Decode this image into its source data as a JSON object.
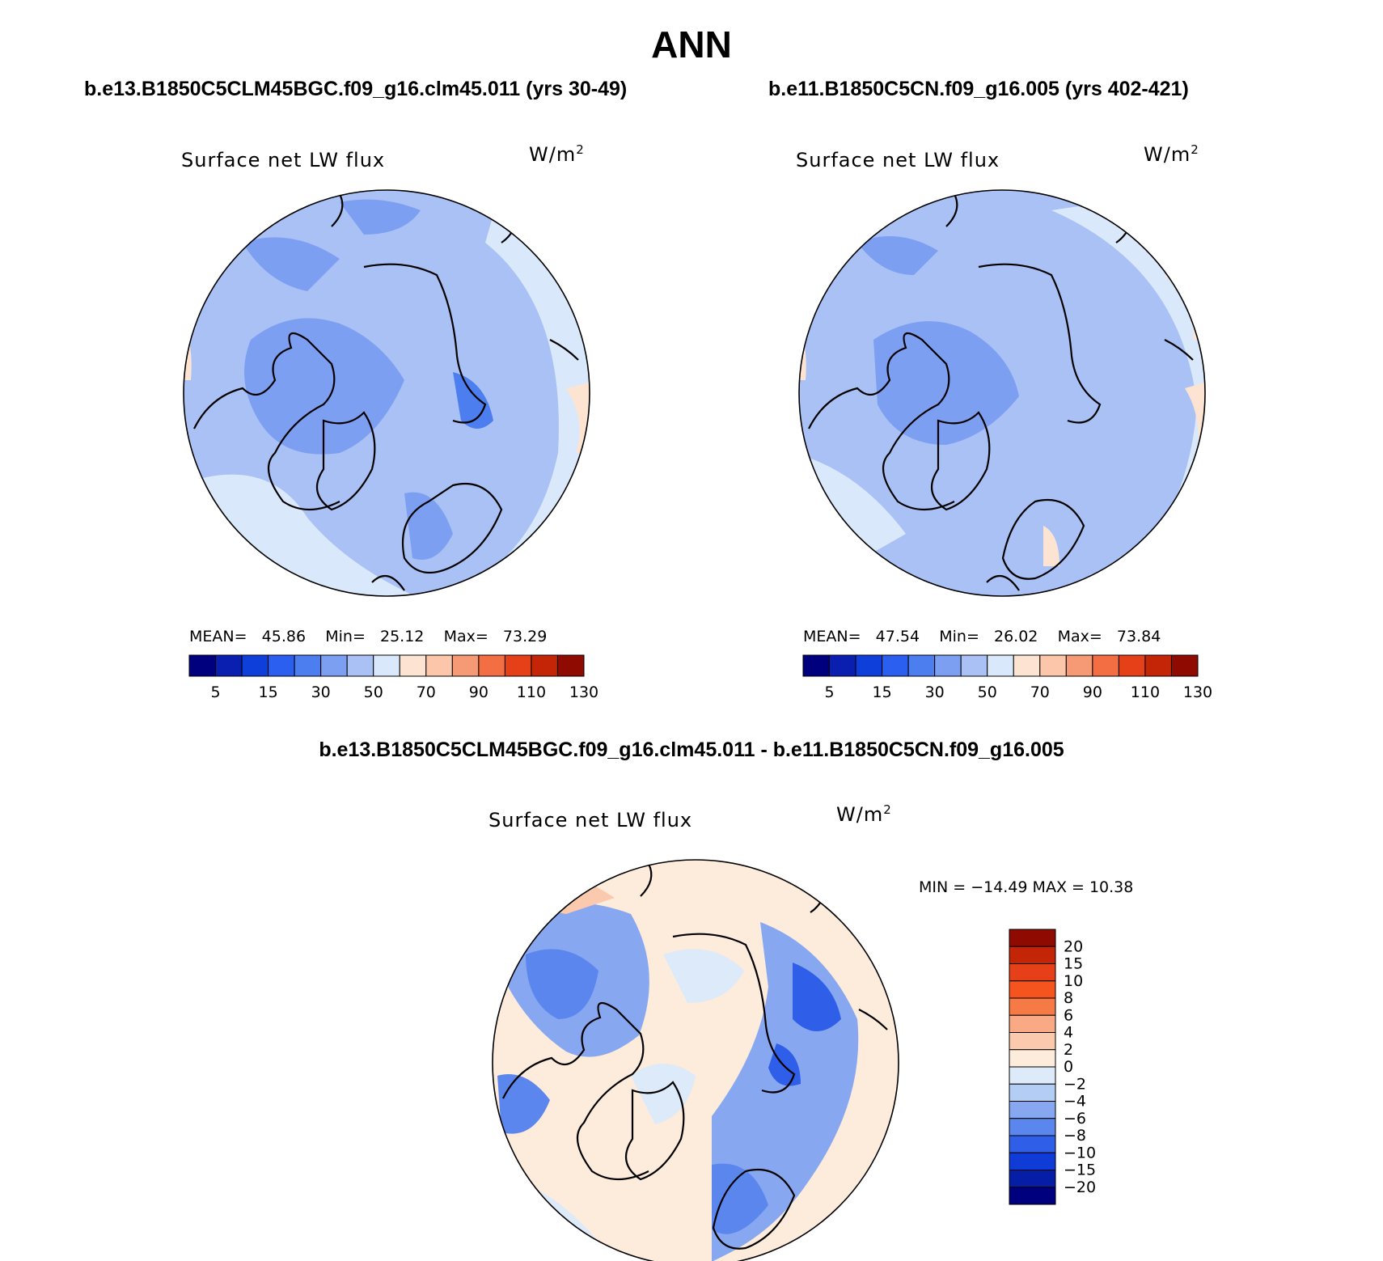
{
  "title": "ANN",
  "panels": [
    {
      "case_title": "b.e13.B1850C5CLM45BGC.f09_g16.clm45.011 (yrs 30-49)",
      "var_label": "Surface net LW flux",
      "units": "W/m",
      "units_exp": "2",
      "stats": {
        "mean_label": "MEAN=",
        "mean": "45.86",
        "min_label": "Min=",
        "min": "25.12",
        "max_label": "Max=",
        "max": "73.29"
      }
    },
    {
      "case_title": "b.e11.B1850C5CN.f09_g16.005 (yrs 402-421)",
      "var_label": "Surface net LW flux",
      "units": "W/m",
      "units_exp": "2",
      "stats": {
        "mean_label": "MEAN=",
        "mean": "47.54",
        "min_label": "Min=",
        "min": "26.02",
        "max_label": "Max=",
        "max": "73.84"
      }
    }
  ],
  "diff_panel": {
    "case_title": "b.e13.B1850C5CLM45BGC.f09_g16.clm45.011 - b.e11.B1850C5CN.f09_g16.005",
    "var_label": "Surface net LW flux",
    "units": "W/m",
    "units_exp": "2",
    "minmax_text": "MIN = −14.49 MAX =  10.38"
  },
  "colorbar_abs": {
    "colors": [
      "#00007f",
      "#0a1fb0",
      "#0f3fdb",
      "#2a5ff0",
      "#4d7ef0",
      "#7d9ff2",
      "#a9c1f5",
      "#d9e8fb",
      "#fde4d2",
      "#fbc6aa",
      "#f59a74",
      "#f36f43",
      "#e64018",
      "#c32506",
      "#8f0a00"
    ],
    "labels": [
      "5",
      "15",
      "30",
      "50",
      "70",
      "90",
      "110",
      "130"
    ]
  },
  "colorbar_diff": {
    "colors": [
      "#8f0a00",
      "#c32506",
      "#e64018",
      "#f6541e",
      "#f57a45",
      "#f9a983",
      "#fbc9ad",
      "#fdebdb",
      "#dceaf9",
      "#b4cdf4",
      "#87a8f0",
      "#5b86ee",
      "#2f5fe9",
      "#0f3bd6",
      "#051ea5",
      "#00007f"
    ],
    "labels": [
      "20",
      "15",
      "10",
      "8",
      "6",
      "4",
      "2",
      "0",
      "−2",
      "−4",
      "−6",
      "−8",
      "−10",
      "−15",
      "−20"
    ]
  },
  "chart_data": [
    {
      "type": "heatmap",
      "projection": "north polar stereographic",
      "title": "Surface net LW flux",
      "units": "W/m2",
      "mean": 45.86,
      "min": 25.12,
      "max": 73.29,
      "levels": [
        5,
        10,
        15,
        20,
        30,
        40,
        50,
        60,
        70,
        80,
        90,
        100,
        110,
        120,
        130
      ]
    },
    {
      "type": "heatmap",
      "projection": "north polar stereographic",
      "title": "Surface net LW flux",
      "units": "W/m2",
      "mean": 47.54,
      "min": 26.02,
      "max": 73.84,
      "levels": [
        5,
        10,
        15,
        20,
        30,
        40,
        50,
        60,
        70,
        80,
        90,
        100,
        110,
        120,
        130
      ]
    },
    {
      "type": "heatmap",
      "projection": "north polar stereographic",
      "title": "Surface net LW flux (difference)",
      "units": "W/m2",
      "min": -14.49,
      "max": 10.38,
      "levels": [
        -20,
        -15,
        -10,
        -8,
        -6,
        -4,
        -2,
        0,
        2,
        4,
        6,
        8,
        10,
        15,
        20
      ]
    }
  ]
}
